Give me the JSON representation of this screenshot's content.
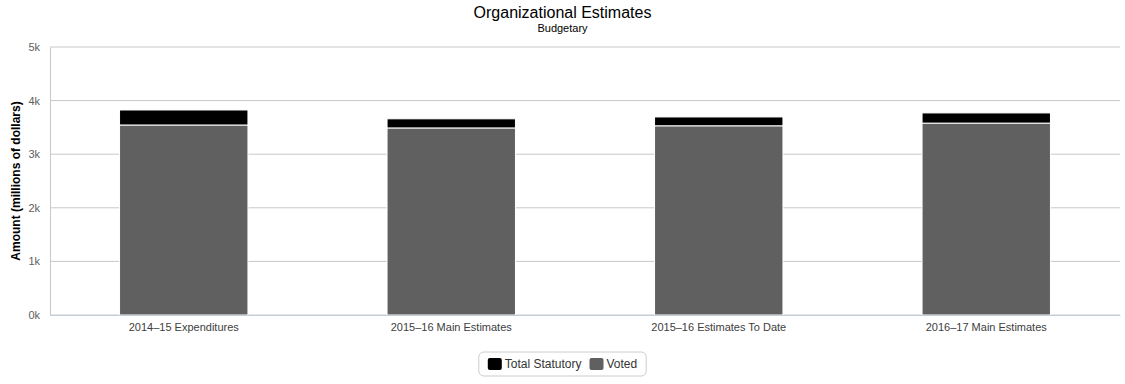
{
  "chart_data": {
    "type": "bar",
    "title": "Organizational Estimates",
    "subtitle": "Budgetary",
    "y_label": "Amount (millions of dollars)",
    "categories": [
      "2014–15 Expenditures",
      "2015–16 Main Estimates",
      "2015–16 Estimates To Date",
      "2016–17 Main Estimates"
    ],
    "series": [
      {
        "name": "Total Statutory",
        "color": "#000000",
        "values": [
          280,
          170,
          165,
          190
        ]
      },
      {
        "name": "Voted",
        "color": "#606060",
        "values": [
          3545,
          3490,
          3530,
          3580
        ]
      }
    ],
    "stacked": true,
    "grid": true,
    "legend": "bottom",
    "ylim": [
      0,
      5000
    ],
    "yticks": [
      {
        "value": 0,
        "label": "0k"
      },
      {
        "value": 1000,
        "label": "1k"
      },
      {
        "value": 2000,
        "label": "2k"
      },
      {
        "value": 3000,
        "label": "3k"
      },
      {
        "value": 4000,
        "label": "4k"
      },
      {
        "value": 5000,
        "label": "5k"
      }
    ]
  }
}
